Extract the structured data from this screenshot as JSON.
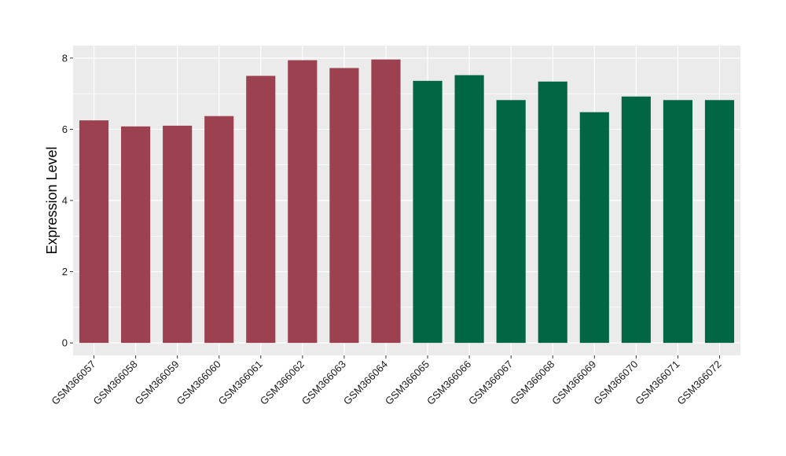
{
  "chart_data": {
    "type": "bar",
    "ylabel": "Expression Level",
    "xlabel": "",
    "ylim": [
      -0.35,
      8.35
    ],
    "yticks": [
      0,
      2,
      4,
      6,
      8
    ],
    "grid": true,
    "categories": [
      "GSM366057",
      "GSM366058",
      "GSM366059",
      "GSM366060",
      "GSM366061",
      "GSM366062",
      "GSM366063",
      "GSM366064",
      "GSM366065",
      "GSM366066",
      "GSM366067",
      "GSM366068",
      "GSM366069",
      "GSM366070",
      "GSM366071",
      "GSM366072"
    ],
    "values": [
      6.25,
      6.08,
      6.1,
      6.37,
      7.5,
      7.94,
      7.72,
      7.96,
      7.36,
      7.52,
      6.82,
      7.34,
      6.48,
      6.92,
      6.82,
      6.82
    ],
    "colors": [
      "#9b4150",
      "#9b4150",
      "#9b4150",
      "#9b4150",
      "#9b4150",
      "#9b4150",
      "#9b4150",
      "#9b4150",
      "#006644",
      "#006644",
      "#006644",
      "#006644",
      "#006644",
      "#006644",
      "#006644",
      "#006644"
    ],
    "panel_background": "#ebebeb",
    "gridline_color": "#ffffff"
  }
}
